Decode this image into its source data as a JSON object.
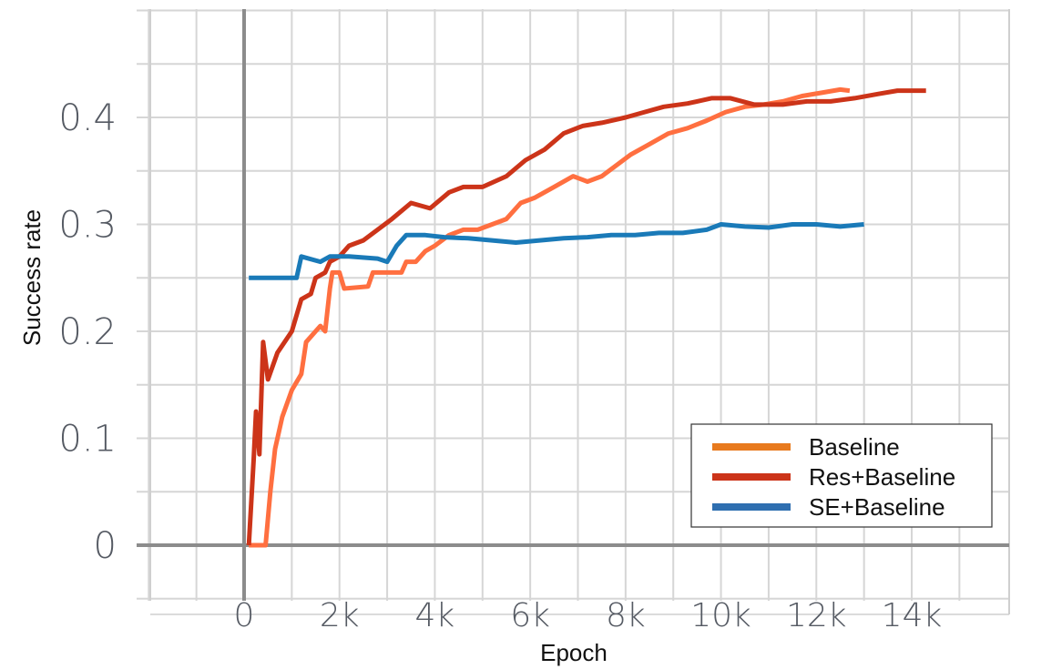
{
  "chart_data": {
    "type": "line",
    "title": "",
    "xlabel": "Epoch",
    "ylabel": "Success rate",
    "xlim": [
      -2000,
      16000
    ],
    "ylim": [
      -0.05,
      0.5
    ],
    "x_ticks": [
      0,
      2000,
      4000,
      6000,
      8000,
      10000,
      12000,
      14000
    ],
    "x_tick_labels": [
      "0",
      "2k",
      "4k",
      "6k",
      "8k",
      "10k",
      "12k",
      "14k"
    ],
    "y_ticks": [
      0,
      0.1,
      0.2,
      0.3,
      0.4
    ],
    "y_tick_labels": [
      "0",
      "0.1",
      "0.2",
      "0.3",
      "0.4"
    ],
    "grid": true,
    "legend_position": "bottom-right",
    "series": [
      {
        "name": "Baseline",
        "color": "#ff6f40",
        "legend_color": "#e87a1e",
        "points": [
          [
            100,
            0
          ],
          [
            450,
            0
          ],
          [
            550,
            0.05
          ],
          [
            650,
            0.09
          ],
          [
            800,
            0.12
          ],
          [
            1000,
            0.145
          ],
          [
            1200,
            0.16
          ],
          [
            1300,
            0.19
          ],
          [
            1500,
            0.2
          ],
          [
            1600,
            0.205
          ],
          [
            1700,
            0.2
          ],
          [
            1800,
            0.24
          ],
          [
            1850,
            0.255
          ],
          [
            2000,
            0.255
          ],
          [
            2100,
            0.24
          ],
          [
            2600,
            0.242
          ],
          [
            2700,
            0.255
          ],
          [
            3300,
            0.255
          ],
          [
            3400,
            0.265
          ],
          [
            3600,
            0.265
          ],
          [
            3800,
            0.275
          ],
          [
            4000,
            0.28
          ],
          [
            4300,
            0.29
          ],
          [
            4600,
            0.295
          ],
          [
            4900,
            0.295
          ],
          [
            5200,
            0.3
          ],
          [
            5500,
            0.305
          ],
          [
            5800,
            0.32
          ],
          [
            6100,
            0.325
          ],
          [
            6500,
            0.335
          ],
          [
            6900,
            0.345
          ],
          [
            7200,
            0.34
          ],
          [
            7500,
            0.345
          ],
          [
            7800,
            0.355
          ],
          [
            8100,
            0.365
          ],
          [
            8500,
            0.375
          ],
          [
            8900,
            0.385
          ],
          [
            9300,
            0.39
          ],
          [
            9700,
            0.397
          ],
          [
            10100,
            0.405
          ],
          [
            10500,
            0.41
          ],
          [
            10900,
            0.412
          ],
          [
            11300,
            0.415
          ],
          [
            11700,
            0.42
          ],
          [
            12100,
            0.423
          ],
          [
            12500,
            0.426
          ],
          [
            12700,
            0.425
          ]
        ]
      },
      {
        "name": "Res+Baseline",
        "color": "#cc3419",
        "legend_color": "#cc3419",
        "points": [
          [
            100,
            0
          ],
          [
            200,
            0.08
          ],
          [
            250,
            0.125
          ],
          [
            320,
            0.085
          ],
          [
            400,
            0.19
          ],
          [
            500,
            0.155
          ],
          [
            700,
            0.18
          ],
          [
            1000,
            0.2
          ],
          [
            1200,
            0.23
          ],
          [
            1400,
            0.235
          ],
          [
            1500,
            0.25
          ],
          [
            1700,
            0.255
          ],
          [
            1800,
            0.265
          ],
          [
            2000,
            0.27
          ],
          [
            2200,
            0.28
          ],
          [
            2500,
            0.285
          ],
          [
            2800,
            0.295
          ],
          [
            3100,
            0.305
          ],
          [
            3500,
            0.32
          ],
          [
            3900,
            0.315
          ],
          [
            4300,
            0.33
          ],
          [
            4600,
            0.335
          ],
          [
            5000,
            0.335
          ],
          [
            5500,
            0.345
          ],
          [
            5900,
            0.36
          ],
          [
            6300,
            0.37
          ],
          [
            6700,
            0.385
          ],
          [
            7100,
            0.392
          ],
          [
            7500,
            0.395
          ],
          [
            8000,
            0.4
          ],
          [
            8400,
            0.405
          ],
          [
            8800,
            0.41
          ],
          [
            9300,
            0.413
          ],
          [
            9800,
            0.418
          ],
          [
            10200,
            0.418
          ],
          [
            10700,
            0.412
          ],
          [
            11300,
            0.412
          ],
          [
            11800,
            0.415
          ],
          [
            12300,
            0.415
          ],
          [
            12800,
            0.418
          ],
          [
            13300,
            0.422
          ],
          [
            13700,
            0.425
          ],
          [
            14000,
            0.425
          ],
          [
            14300,
            0.425
          ]
        ]
      },
      {
        "name": "SE+Baseline",
        "color": "#1a7ab8",
        "legend_color": "#2f6fb0",
        "points": [
          [
            100,
            0.25
          ],
          [
            1100,
            0.25
          ],
          [
            1200,
            0.27
          ],
          [
            1600,
            0.265
          ],
          [
            1800,
            0.27
          ],
          [
            2200,
            0.27
          ],
          [
            2800,
            0.268
          ],
          [
            3000,
            0.265
          ],
          [
            3200,
            0.28
          ],
          [
            3400,
            0.29
          ],
          [
            3800,
            0.29
          ],
          [
            4200,
            0.288
          ],
          [
            4700,
            0.287
          ],
          [
            5200,
            0.285
          ],
          [
            5700,
            0.283
          ],
          [
            6200,
            0.285
          ],
          [
            6700,
            0.287
          ],
          [
            7200,
            0.288
          ],
          [
            7700,
            0.29
          ],
          [
            8200,
            0.29
          ],
          [
            8700,
            0.292
          ],
          [
            9200,
            0.292
          ],
          [
            9700,
            0.295
          ],
          [
            10000,
            0.3
          ],
          [
            10500,
            0.298
          ],
          [
            11000,
            0.297
          ],
          [
            11500,
            0.3
          ],
          [
            12000,
            0.3
          ],
          [
            12500,
            0.298
          ],
          [
            13000,
            0.3
          ]
        ]
      }
    ]
  }
}
